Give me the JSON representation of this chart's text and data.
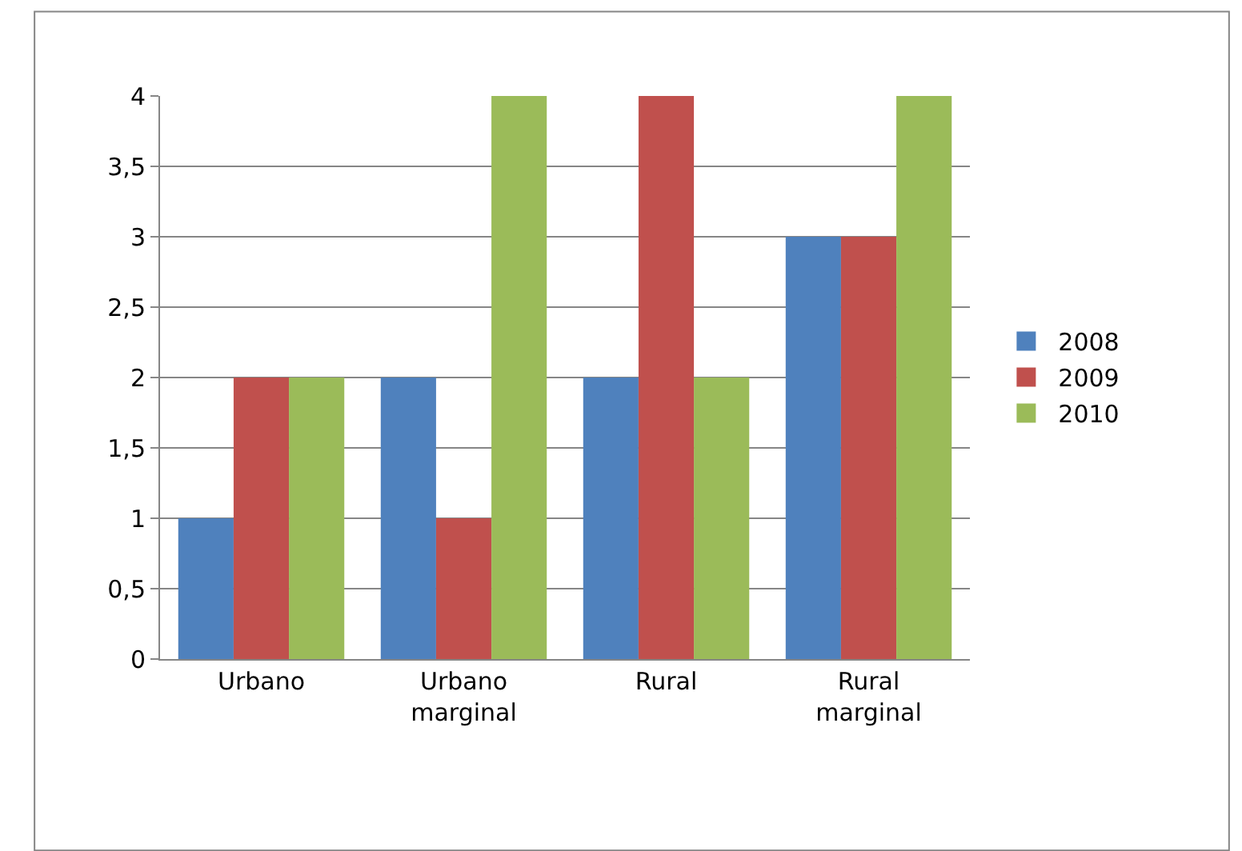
{
  "chart_data": {
    "type": "bar",
    "categories": [
      "Urbano",
      "Urbano marginal",
      "Rural",
      "Rural marginal"
    ],
    "series": [
      {
        "name": "2008",
        "color": "#4f81bd",
        "values": [
          1,
          2,
          2,
          3
        ]
      },
      {
        "name": "2009",
        "color": "#c0504d",
        "values": [
          2,
          1,
          4,
          3
        ]
      },
      {
        "name": "2010",
        "color": "#9bbb59",
        "values": [
          2,
          4,
          2,
          4
        ]
      }
    ],
    "ylim": [
      0,
      4
    ],
    "yticks": [
      0,
      {
        "value": 0.5,
        "label": "0,5"
      },
      1,
      {
        "value": 1.5,
        "label": "1,5"
      },
      2,
      {
        "value": 2.5,
        "label": "2,5"
      },
      3,
      {
        "value": 3.5,
        "label": "3,5"
      },
      4
    ],
    "grid": "y",
    "legend": "right"
  }
}
